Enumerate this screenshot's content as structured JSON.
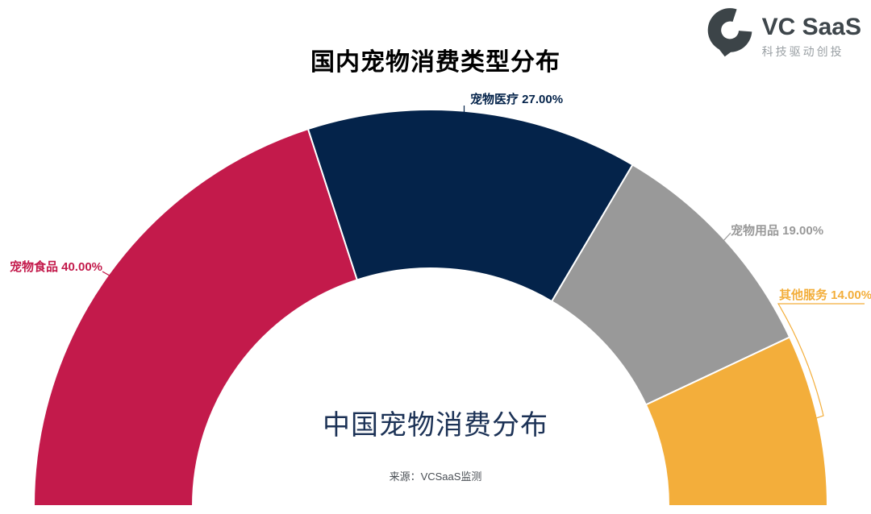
{
  "title": "国内宠物消费类型分布",
  "logo": {
    "name": "VC SaaS",
    "tagline": "科技驱动创投",
    "mark_color": "#3C4448"
  },
  "center_label": "中国宠物消费分布",
  "source": "来源：VCSaaS监测",
  "chart_data": {
    "type": "pie",
    "subtype": "half-donut",
    "title": "国内宠物消费类型分布",
    "center_text": "中国宠物消费分布",
    "source": "来源：VCSaaS监测",
    "categories": [
      "宠物食品",
      "宠物医疗",
      "宠物用品",
      "其他服务"
    ],
    "values": [
      40.0,
      27.0,
      19.0,
      14.0
    ],
    "unit": "%",
    "colors": [
      "#C31A4B",
      "#04234A",
      "#999999",
      "#F3AE3B"
    ],
    "start_angle": 180,
    "end_angle": 0,
    "legend": "off",
    "labels": "outside, name + percent with two decimals, leader lines"
  }
}
